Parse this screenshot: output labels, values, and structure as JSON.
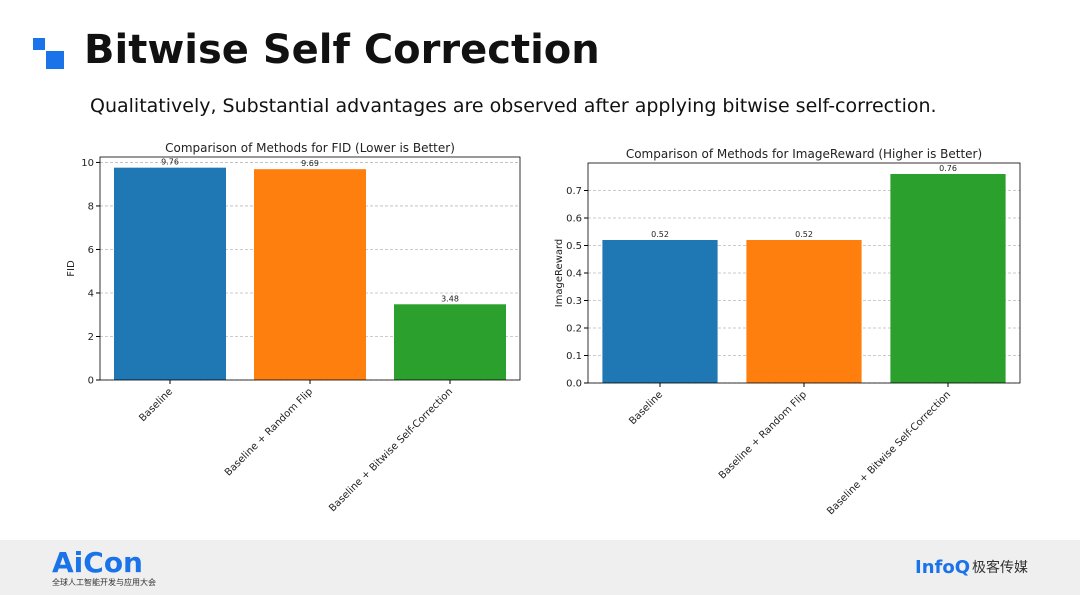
{
  "header": {
    "title": "Bitwise Self Correction",
    "subtitle": "Qualitatively, Substantial advantages are observed after applying bitwise self-correction."
  },
  "chart_data": [
    {
      "type": "bar",
      "title": "Comparison of Methods for FID (Lower is Better)",
      "y_label": "FID",
      "categories": [
        "Baseline",
        "Baseline + Random Flip",
        "Baseline + Bitwise Self-Correction"
      ],
      "values": [
        9.76,
        9.69,
        3.48
      ],
      "colors": [
        "#1f77b4",
        "#ff7f0e",
        "#2ca02c"
      ],
      "ylim": [
        0,
        10.25
      ],
      "yticks": [
        0,
        2,
        4,
        6,
        8,
        10
      ],
      "grid": true
    },
    {
      "type": "bar",
      "title": "Comparison of Methods for ImageReward (Higher is Better)",
      "y_label": "ImageReward",
      "categories": [
        "Baseline",
        "Baseline + Random Flip",
        "Baseline + Bitwise Self-Correction"
      ],
      "values": [
        0.52,
        0.52,
        0.76
      ],
      "colors": [
        "#1f77b4",
        "#ff7f0e",
        "#2ca02c"
      ],
      "ylim": [
        0,
        0.8
      ],
      "yticks": [
        {
          "value": 0,
          "label": "0.0"
        },
        0.1,
        0.2,
        0.3,
        0.4,
        0.5,
        0.6,
        0.7
      ],
      "grid": true
    }
  ],
  "footer": {
    "left_logo": "AiCon",
    "left_caption": "全球人工智能开发与应用大会",
    "right_logo": "InfoQ",
    "right_caption": "极客传媒"
  }
}
